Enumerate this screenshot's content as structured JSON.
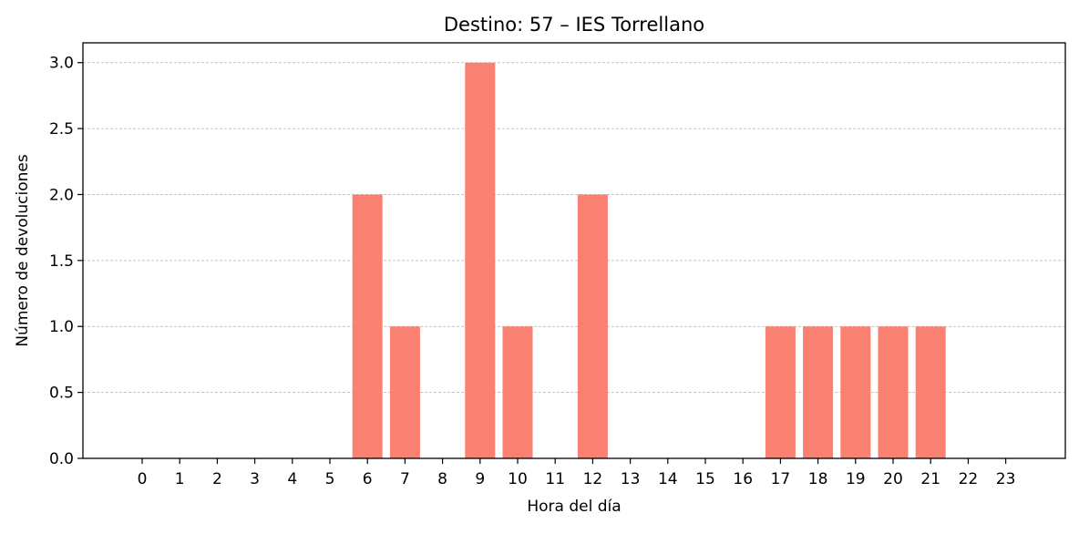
{
  "chart_data": {
    "type": "bar",
    "title": "Destino: 57 – IES Torrellano",
    "xlabel": "Hora del día",
    "ylabel": "Número de devoluciones",
    "categories": [
      "0",
      "1",
      "2",
      "3",
      "4",
      "5",
      "6",
      "7",
      "8",
      "9",
      "10",
      "11",
      "12",
      "13",
      "14",
      "15",
      "16",
      "17",
      "18",
      "19",
      "20",
      "21",
      "22",
      "23"
    ],
    "values": [
      0,
      0,
      0,
      0,
      0,
      0,
      2,
      1,
      0,
      3,
      1,
      0,
      2,
      0,
      0,
      0,
      0,
      1,
      1,
      1,
      1,
      1,
      0,
      0
    ],
    "ylim": [
      0,
      3.15
    ],
    "yticks": [
      0.0,
      0.5,
      1.0,
      1.5,
      2.0,
      2.5,
      3.0
    ],
    "ytick_labels": [
      "0.0",
      "0.5",
      "1.0",
      "1.5",
      "2.0",
      "2.5",
      "3.0"
    ],
    "grid": {
      "axis": "y",
      "style": "dashed"
    },
    "bar_color": "#fa8072"
  }
}
